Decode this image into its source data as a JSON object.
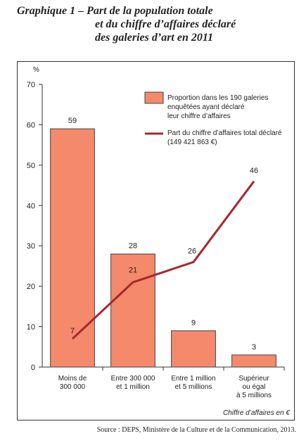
{
  "title": {
    "line1": "Graphique 1 – Part de la population totale",
    "line2": "et du chiffre d’affaires déclaré",
    "line3": "des galeries d’art en 2011"
  },
  "source": "Source : DEPS, Ministère de la Culture et de la Communication, 2013.",
  "chart_data": {
    "type": "bar",
    "ylabel": "%",
    "xlabel": "Chiffre d’affaires en €",
    "ylim": [
      0,
      70
    ],
    "yticks": [
      0,
      10,
      20,
      30,
      40,
      50,
      60,
      70
    ],
    "grid": false,
    "legend_position": "top-right",
    "categories": [
      [
        "Moins de",
        "300 000"
      ],
      [
        "Entre 300 000",
        "et 1 million"
      ],
      [
        "Entre 1 million",
        "et 5 millions"
      ],
      [
        "Supérieur",
        "ou égal",
        "à 5 millions"
      ]
    ],
    "series": [
      {
        "name": "Proportion dans les 190 galeries enquêtées ayant déclaré leur chiffre d’affaires",
        "legend_lines": [
          "Proportion dans les 190 galeries",
          "enquêtées ayant déclaré",
          "leur chiffre d’affaires"
        ],
        "type": "bar",
        "color": "#f4896b",
        "values": [
          59,
          28,
          9,
          3
        ],
        "labels": [
          "59",
          "28",
          "9",
          "3"
        ]
      },
      {
        "name": "Part du chiffre d’affaires total déclaré (149 421 863 €)",
        "legend_lines": [
          "Part du chiffre d’affaires total déclaré",
          "(149 421 863 €)"
        ],
        "type": "line",
        "color": "#a7282c",
        "values": [
          7,
          21,
          26,
          46
        ],
        "labels": [
          "7",
          "21",
          "26",
          "46"
        ]
      }
    ]
  }
}
